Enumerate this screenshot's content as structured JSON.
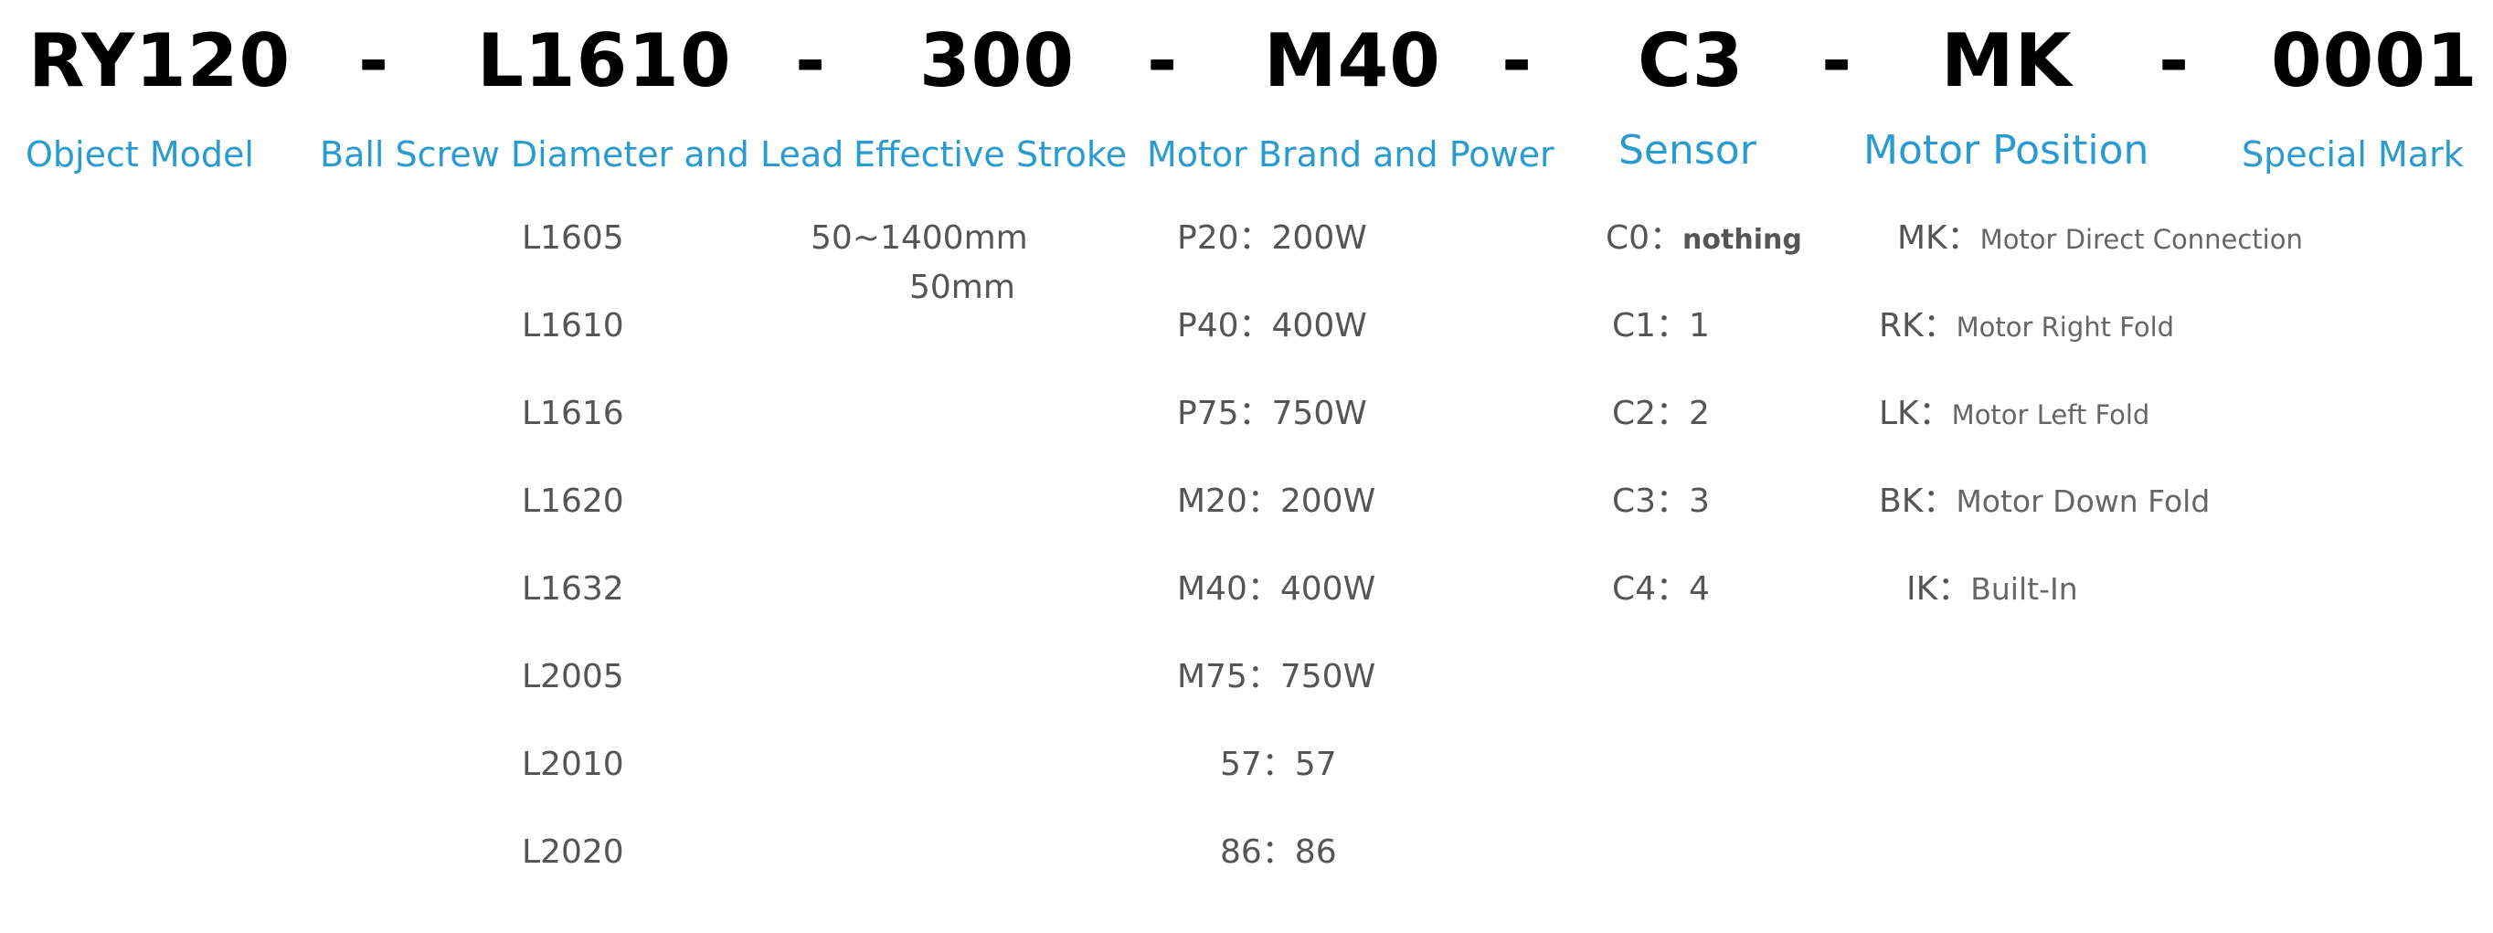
{
  "code_parts": [
    "RY120",
    "-",
    "L1610",
    "-",
    "300",
    "-",
    "M40",
    "-",
    "C3",
    "-",
    "MK",
    "-",
    "0001"
  ],
  "labels": [
    "Object Model",
    "Ball Screw Diameter and Lead",
    "Effective Stroke",
    "Motor Brand and Power",
    "Sensor",
    "Motor Position",
    "Special Mark"
  ],
  "ball_screw": [
    "L1605",
    "L1610",
    "L1616",
    "L1620",
    "L1632",
    "L2005",
    "L2010",
    "L2020"
  ],
  "stroke": {
    "range": "50~1400mm",
    "step": "50mm"
  },
  "motor": [
    "P20：200W",
    "P40：400W",
    "P75：750W",
    "M20：200W",
    "M40：400W",
    "M75：750W",
    "57：57",
    "86：86"
  ],
  "sensor": [
    {
      "code": "C0：",
      "desc": "nothing"
    },
    {
      "code": "C1：",
      "desc": "1"
    },
    {
      "code": "C2：",
      "desc": "2"
    },
    {
      "code": "C3：",
      "desc": "3"
    },
    {
      "code": "C4：",
      "desc": "4"
    }
  ],
  "motor_position": [
    {
      "code": "MK：",
      "desc": "Motor Direct Connection"
    },
    {
      "code": "RK：",
      "desc": "Motor Right Fold"
    },
    {
      "code": "LK：",
      "desc": "Motor Left Fold"
    },
    {
      "code": "BK：",
      "desc": "Motor Down Fold"
    },
    {
      "code": "IK：",
      "desc": "Built-In"
    }
  ],
  "colors": {
    "label": "#2a9bd0",
    "text": "#555555",
    "code": "#000000"
  }
}
